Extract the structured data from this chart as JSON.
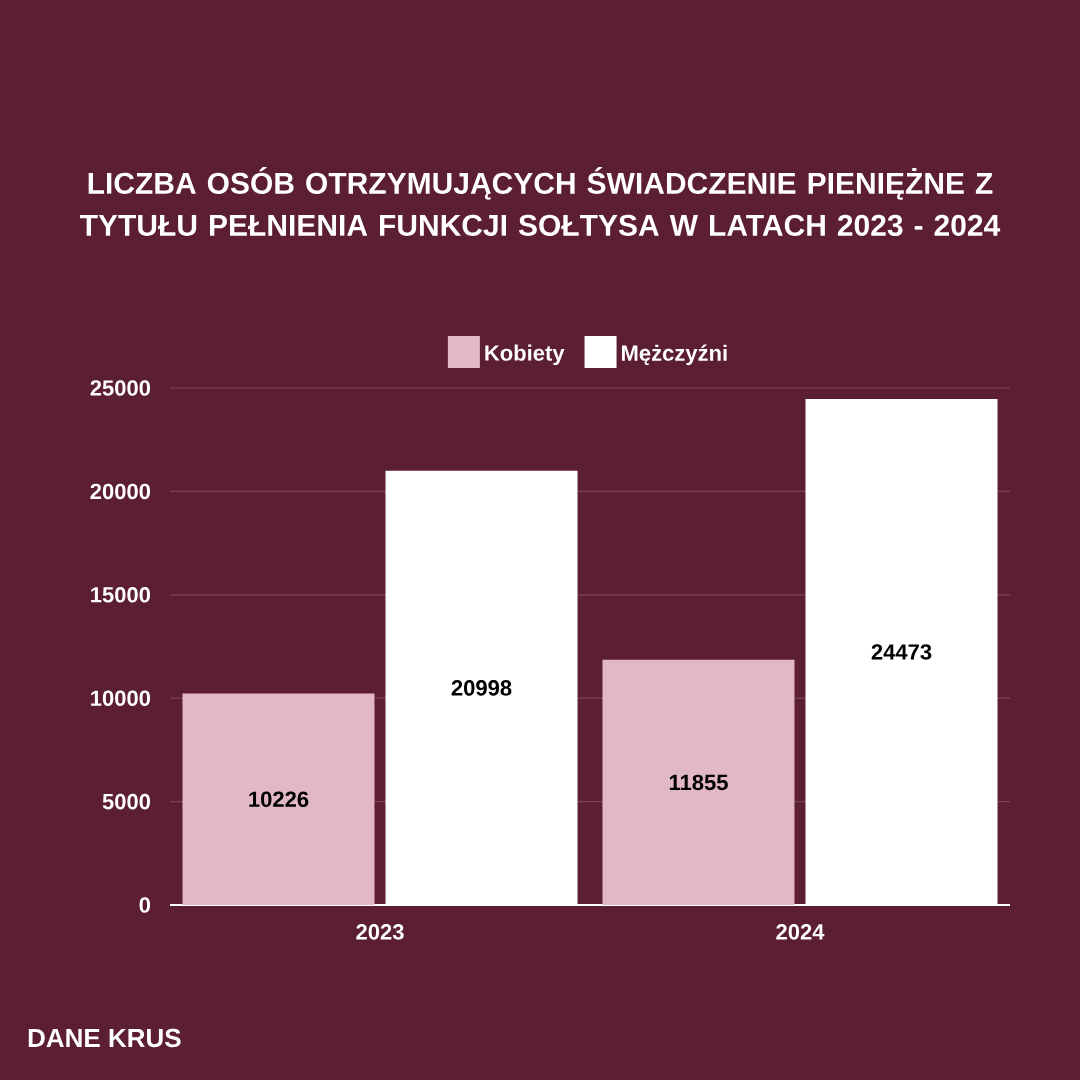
{
  "chart_data": {
    "type": "bar",
    "title": "LICZBA OSÓB OTRZYMUJĄCYCH ŚWIADCZENIE PIENIĘŻNE Z TYTUŁU PEŁNIENIA FUNKCJI SOŁTYSA W  LATACH 2023 - 2024",
    "categories": [
      "2023",
      "2024"
    ],
    "series": [
      {
        "name": "Kobiety",
        "color": "#e3b8c5",
        "values": [
          10226,
          11855
        ]
      },
      {
        "name": "Mężczyźni",
        "color": "#ffffff",
        "values": [
          20998,
          24473
        ]
      }
    ],
    "ylim": [
      0,
      25000
    ],
    "yticks": [
      0,
      5000,
      10000,
      15000,
      20000,
      25000
    ],
    "grid": "y",
    "legend": "top",
    "data_labels": true,
    "annotations": [
      "DANE KRUS"
    ]
  }
}
